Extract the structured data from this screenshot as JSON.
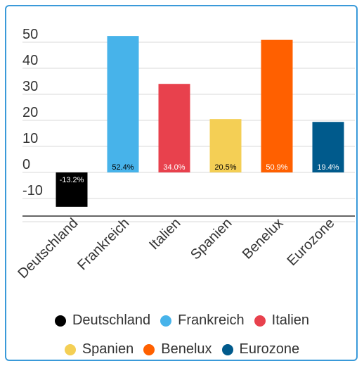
{
  "chart_data": {
    "type": "bar",
    "categories": [
      "Deutschland",
      "Frankreich",
      "Italien",
      "Spanien",
      "Benelux",
      "Eurozone"
    ],
    "values": [
      -13.2,
      52.4,
      34.0,
      20.5,
      50.9,
      19.4
    ],
    "data_labels": [
      "-13.2%",
      "52.4%",
      "34.0%",
      "20.5%",
      "50.9%",
      "19.4%"
    ],
    "colors": [
      "#000000",
      "#47b3ea",
      "#e8414d",
      "#f4cf55",
      "#ff6000",
      "#005a8c"
    ],
    "yticks": [
      50,
      40,
      30,
      20,
      10,
      0,
      -10
    ],
    "ylim": [
      -20,
      57
    ],
    "grid": true,
    "legend_position": "bottom",
    "title": "",
    "xlabel": "",
    "ylabel": ""
  }
}
